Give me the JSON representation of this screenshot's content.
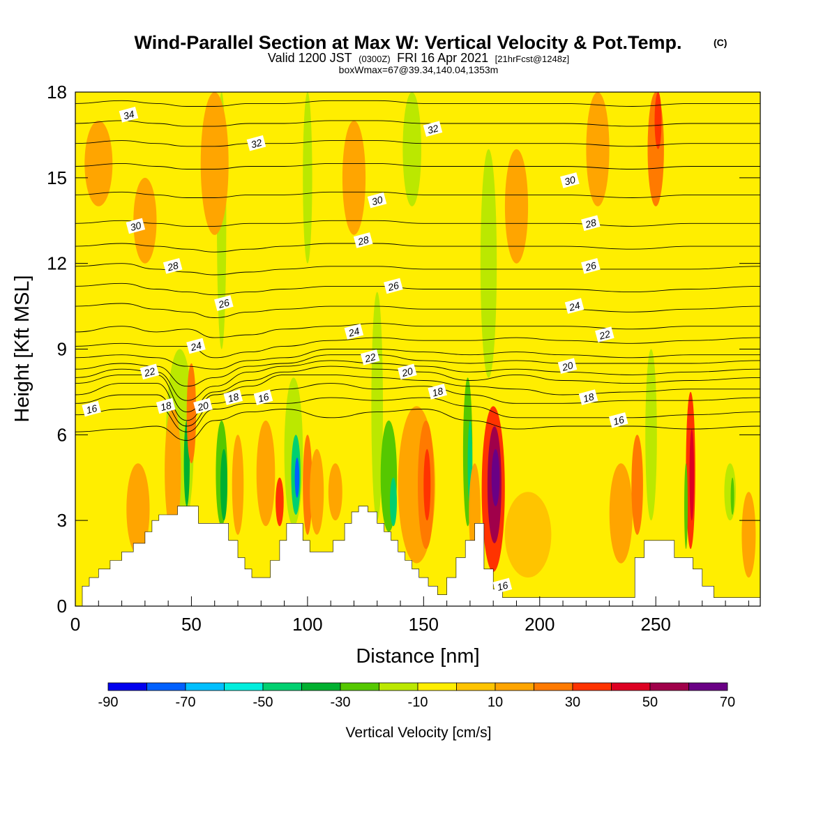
{
  "title": {
    "main": "Wind-Parallel Section at Max W: Vertical Velocity & Pot.Temp.",
    "copyright": "(C)",
    "valid_a": "Valid 1200 JST",
    "valid_b": "(0300Z)",
    "valid_c": "FRI 16 Apr 2021",
    "valid_d": "[21hrFcst@1248z]",
    "info": "boxWmax=67@39.34,140.04,1353m"
  },
  "colors": {
    "background": "#ffffff",
    "contour": "#000000",
    "terrain": "#ffffff"
  },
  "chart_data": {
    "type": "heatmap",
    "title": "Wind-Parallel Section at Max W: Vertical Velocity & Pot.Temp.",
    "xlabel": "Distance [nm]",
    "ylabel": "Height [Kft MSL]",
    "xlim": [
      0,
      295
    ],
    "ylim": [
      0,
      18
    ],
    "x_ticks": [
      0,
      50,
      100,
      150,
      200,
      250
    ],
    "y_ticks": [
      0,
      3,
      6,
      9,
      12,
      15,
      18
    ],
    "colorbar": {
      "label": "Vertical Velocity [cm/s]",
      "tick_labels": [
        "-90",
        "-70",
        "-50",
        "-30",
        "-10",
        "10",
        "30",
        "50",
        "70"
      ],
      "bins": [
        {
          "from": -90,
          "to": -80,
          "color": "#0000ee"
        },
        {
          "from": -80,
          "to": -70,
          "color": "#0060ff"
        },
        {
          "from": -70,
          "to": -60,
          "color": "#00bfff"
        },
        {
          "from": -60,
          "to": -50,
          "color": "#00eedd"
        },
        {
          "from": -50,
          "to": -40,
          "color": "#00d070"
        },
        {
          "from": -40,
          "to": -30,
          "color": "#00b030"
        },
        {
          "from": -30,
          "to": -20,
          "color": "#55c800"
        },
        {
          "from": -20,
          "to": -10,
          "color": "#bbe800"
        },
        {
          "from": -10,
          "to": 0,
          "color": "#ffee00"
        },
        {
          "from": 0,
          "to": 10,
          "color": "#ffc400"
        },
        {
          "from": 10,
          "to": 20,
          "color": "#ffa500"
        },
        {
          "from": 20,
          "to": 30,
          "color": "#ff7a00"
        },
        {
          "from": 30,
          "to": 40,
          "color": "#ff3300"
        },
        {
          "from": 40,
          "to": 50,
          "color": "#dd0022"
        },
        {
          "from": 50,
          "to": 60,
          "color": "#a0004a"
        },
        {
          "from": 60,
          "to": 70,
          "color": "#6a0085"
        }
      ]
    },
    "field_features": [
      {
        "x": 45,
        "y0": 2.5,
        "y1": 9,
        "w": 12,
        "value": -15
      },
      {
        "x": 48,
        "y0": 3.5,
        "y1": 6.5,
        "w": 2.5,
        "value": -35
      },
      {
        "x": 50,
        "y0": 5,
        "y1": 8.5,
        "w": 4,
        "value": 25
      },
      {
        "x": 42,
        "y0": 2.5,
        "y1": 7,
        "w": 7,
        "value": 12
      },
      {
        "x": 63,
        "y0": 2.8,
        "y1": 6.5,
        "w": 5,
        "value": -30
      },
      {
        "x": 64,
        "y0": 3,
        "y1": 5.5,
        "w": 3,
        "value": -40
      },
      {
        "x": 70,
        "y0": 2.5,
        "y1": 6,
        "w": 5,
        "value": 15
      },
      {
        "x": 27,
        "y0": 1.8,
        "y1": 5,
        "w": 10,
        "value": 12
      },
      {
        "x": 82,
        "y0": 2.8,
        "y1": 6.5,
        "w": 8,
        "value": 15
      },
      {
        "x": 88,
        "y0": 2.8,
        "y1": 4.5,
        "w": 3.5,
        "value": 35
      },
      {
        "x": 94,
        "y0": 2.8,
        "y1": 8,
        "w": 8,
        "value": -20
      },
      {
        "x": 95,
        "y0": 3.2,
        "y1": 6,
        "w": 4,
        "value": -45
      },
      {
        "x": 95.5,
        "y0": 3.8,
        "y1": 5.2,
        "w": 2,
        "value": -75
      },
      {
        "x": 100,
        "y0": 2.5,
        "y1": 6,
        "w": 4,
        "value": 25
      },
      {
        "x": 104,
        "y0": 2.5,
        "y1": 5.5,
        "w": 6,
        "value": 12
      },
      {
        "x": 112,
        "y0": 3,
        "y1": 5,
        "w": 6,
        "value": 15
      },
      {
        "x": 130,
        "y0": 3,
        "y1": 11,
        "w": 5,
        "value": -15
      },
      {
        "x": 135,
        "y0": 2.6,
        "y1": 6.5,
        "w": 7,
        "value": -30
      },
      {
        "x": 137,
        "y0": 2.8,
        "y1": 4.5,
        "w": 3,
        "value": -50
      },
      {
        "x": 147,
        "y0": 1.5,
        "y1": 7,
        "w": 16,
        "value": 12
      },
      {
        "x": 151,
        "y0": 2,
        "y1": 6.5,
        "w": 7,
        "value": 25
      },
      {
        "x": 151.5,
        "y0": 3,
        "y1": 5.5,
        "w": 3,
        "value": 35
      },
      {
        "x": 169,
        "y0": 2.8,
        "y1": 8,
        "w": 4,
        "value": -30
      },
      {
        "x": 170,
        "y0": 3.5,
        "y1": 6.5,
        "w": 2,
        "value": -42
      },
      {
        "x": 180,
        "y0": 1.2,
        "y1": 7,
        "w": 10,
        "value": 35
      },
      {
        "x": 180.5,
        "y0": 2.2,
        "y1": 6.3,
        "w": 6,
        "value": 50
      },
      {
        "x": 181,
        "y0": 3.5,
        "y1": 5.5,
        "w": 3.5,
        "value": 65
      },
      {
        "x": 178,
        "y0": 8,
        "y1": 16,
        "w": 7,
        "value": -15
      },
      {
        "x": 172,
        "y0": 1.5,
        "y1": 5,
        "w": 5,
        "value": 15
      },
      {
        "x": 195,
        "y0": 1,
        "y1": 4,
        "w": 20,
        "value": 8
      },
      {
        "x": 235,
        "y0": 1.5,
        "y1": 5,
        "w": 10,
        "value": 12
      },
      {
        "x": 242,
        "y0": 2.5,
        "y1": 6,
        "w": 5,
        "value": 20
      },
      {
        "x": 248,
        "y0": 3,
        "y1": 9,
        "w": 5,
        "value": -15
      },
      {
        "x": 250,
        "y0": 14,
        "y1": 18,
        "w": 7,
        "value": 25
      },
      {
        "x": 251,
        "y0": 16,
        "y1": 18,
        "w": 3,
        "value": 35
      },
      {
        "x": 265,
        "y0": 2,
        "y1": 7.5,
        "w": 4,
        "value": 30
      },
      {
        "x": 265.5,
        "y0": 3,
        "y1": 6.2,
        "w": 2,
        "value": 45
      },
      {
        "x": 263,
        "y0": 2,
        "y1": 5,
        "w": 1.5,
        "value": -30
      },
      {
        "x": 282,
        "y0": 3,
        "y1": 5,
        "w": 5,
        "value": -15
      },
      {
        "x": 283,
        "y0": 3.2,
        "y1": 4.5,
        "w": 1.5,
        "value": -30
      },
      {
        "x": 290,
        "y0": 1,
        "y1": 4,
        "w": 6,
        "value": 12
      },
      {
        "x": 63,
        "y0": 9,
        "y1": 18,
        "w": 4,
        "value": -15
      },
      {
        "x": 100,
        "y0": 12,
        "y1": 18,
        "w": 4,
        "value": -15
      },
      {
        "x": 145,
        "y0": 14,
        "y1": 18,
        "w": 8,
        "value": -12
      },
      {
        "x": 60,
        "y0": 13,
        "y1": 18,
        "w": 12,
        "value": 12
      },
      {
        "x": 120,
        "y0": 13,
        "y1": 17,
        "w": 10,
        "value": 12
      },
      {
        "x": 190,
        "y0": 12,
        "y1": 16,
        "w": 10,
        "value": 12
      },
      {
        "x": 225,
        "y0": 14,
        "y1": 18,
        "w": 10,
        "value": 12
      },
      {
        "x": 30,
        "y0": 12,
        "y1": 15,
        "w": 10,
        "value": 12
      },
      {
        "x": 10,
        "y0": 14,
        "y1": 17,
        "w": 12,
        "value": 12
      }
    ],
    "terrain": {
      "x": [
        0,
        3,
        6,
        10,
        15,
        20,
        25,
        30,
        33,
        36,
        40,
        44,
        48,
        53,
        58,
        63,
        66,
        70,
        73,
        76,
        80,
        84,
        88,
        91,
        95,
        98,
        101,
        106,
        111,
        116,
        119,
        122,
        126,
        130,
        133,
        136,
        139,
        142,
        145,
        148,
        152,
        156,
        160,
        164,
        168,
        172,
        176,
        180,
        184,
        190,
        200,
        210,
        220,
        230,
        237,
        241,
        245,
        250,
        254,
        258,
        262,
        266,
        270,
        275,
        280,
        285,
        290,
        295
      ],
      "y": [
        0,
        0.7,
        1,
        1.3,
        1.6,
        1.9,
        2.2,
        2.6,
        3,
        3.2,
        3.2,
        3.5,
        3.5,
        2.9,
        2.9,
        2.9,
        2.3,
        1.7,
        1.3,
        1,
        1,
        1.6,
        2.3,
        2.9,
        2.9,
        2.3,
        1.9,
        1.9,
        2.3,
        2.9,
        3.3,
        3.5,
        3.3,
        2.9,
        2.6,
        2.3,
        1.9,
        1.6,
        1.3,
        1,
        0.7,
        0.4,
        1,
        1.7,
        2.3,
        2.9,
        1.3,
        0.6,
        0.3,
        0.3,
        0.3,
        0.3,
        0.3,
        0.3,
        0.3,
        1.7,
        2.3,
        2.3,
        2.3,
        1.7,
        1.7,
        1.3,
        0.7,
        0.3,
        0.3,
        0.3,
        0.3,
        0.3
      ]
    },
    "contour_values": [
      16,
      17,
      18,
      19,
      20,
      21,
      22,
      23,
      24,
      25,
      26,
      27,
      28,
      29,
      30,
      31,
      32,
      33,
      34,
      35
    ],
    "contour_levels": [
      {
        "value": 16,
        "y": [
          6.1,
          6.2,
          6.3,
          5.8,
          6.5,
          6.8,
          6.9,
          6.6,
          6.8,
          6.9,
          6.5,
          6.2,
          6.3,
          6.3,
          6.2,
          6.3
        ]
      },
      {
        "value": 17,
        "y": [
          6.7,
          6.9,
          7,
          6.1,
          6.9,
          7.1,
          7.1,
          7.3,
          7.2,
          7.3,
          7,
          6.6,
          6.6,
          6.6,
          6.7,
          6.8
        ]
      },
      {
        "value": 18,
        "y": [
          7.1,
          7.4,
          7.4,
          6.3,
          7.1,
          7.4,
          7.6,
          7.8,
          7.6,
          7.7,
          7.4,
          7.1,
          7.1,
          7.2,
          7.2,
          7.3
        ]
      },
      {
        "value": 19,
        "y": [
          7.4,
          7.8,
          7.8,
          6.5,
          7.4,
          7.7,
          8.1,
          8.1,
          8,
          7.9,
          7.7,
          7.6,
          7.4,
          7.5,
          7.6,
          7.6
        ]
      },
      {
        "value": 20,
        "y": [
          7.8,
          8.1,
          8.1,
          6.8,
          7.5,
          7.9,
          8.2,
          8.4,
          8.3,
          8.2,
          7.9,
          8.1,
          7.9,
          7.8,
          7.9,
          8
        ]
      },
      {
        "value": 21,
        "y": [
          8,
          8.3,
          8.2,
          7.2,
          7.7,
          8.2,
          8.4,
          8.6,
          8.5,
          8.4,
          8.2,
          8.3,
          8.2,
          8.1,
          8.2,
          8.3
        ]
      },
      {
        "value": 22,
        "y": [
          8.3,
          8.5,
          8.4,
          7.7,
          8,
          8.4,
          8.5,
          8.8,
          8.8,
          8.6,
          8.5,
          8.6,
          8.5,
          8.5,
          8.5,
          8.6
        ]
      },
      {
        "value": 23,
        "y": [
          8.7,
          8.8,
          8.7,
          8.4,
          8.3,
          8.6,
          8.7,
          9,
          9,
          8.9,
          8.8,
          8.9,
          8.8,
          8.7,
          8.8,
          8.8
        ]
      },
      {
        "value": 24,
        "y": [
          9.1,
          9.2,
          9.1,
          9.1,
          8.7,
          8.9,
          9.1,
          9.3,
          9.4,
          9.3,
          9.3,
          9.4,
          9.3,
          9.2,
          9.3,
          9.4
        ]
      },
      {
        "value": 25,
        "y": [
          9.6,
          9.8,
          9.6,
          9.7,
          9.4,
          9.5,
          9.7,
          9.8,
          9.9,
          9.8,
          9.8,
          9.8,
          9.8,
          9.7,
          9.8,
          9.8
        ]
      },
      {
        "value": 26,
        "y": [
          10.5,
          10.6,
          10.4,
          10.3,
          10.1,
          10.3,
          10.4,
          10.5,
          10.5,
          10.4,
          10.4,
          10.4,
          10.4,
          10.3,
          10.4,
          10.5
        ]
      },
      {
        "value": 27,
        "y": [
          11.2,
          11.3,
          11.1,
          11,
          10.9,
          11,
          11.1,
          11.2,
          11.2,
          11.1,
          11.1,
          11.1,
          11.1,
          11,
          11.1,
          11.2
        ]
      },
      {
        "value": 28,
        "y": [
          11.9,
          12,
          11.8,
          11.7,
          11.6,
          11.7,
          11.8,
          11.9,
          11.9,
          11.8,
          11.8,
          11.8,
          11.8,
          11.8,
          11.8,
          11.9
        ]
      },
      {
        "value": 29,
        "y": [
          12.6,
          12.7,
          12.6,
          12.5,
          12.4,
          12.5,
          12.6,
          12.7,
          12.7,
          12.6,
          12.6,
          12.6,
          12.6,
          12.5,
          12.6,
          12.6
        ]
      },
      {
        "value": 30,
        "y": [
          13.4,
          13.5,
          13.4,
          13.3,
          13.3,
          13.4,
          13.4,
          13.5,
          13.5,
          13.4,
          13.4,
          13.4,
          13.4,
          13.3,
          13.4,
          13.4
        ]
      },
      {
        "value": 31,
        "y": [
          14.4,
          14.5,
          14.4,
          14.3,
          14.3,
          14.4,
          14.4,
          14.5,
          14.5,
          14.4,
          14.4,
          14.4,
          14.4,
          14.3,
          14.4,
          14.4
        ]
      },
      {
        "value": 32,
        "y": [
          15.4,
          15.5,
          15.4,
          15.3,
          15.3,
          15.4,
          15.4,
          15.5,
          15.5,
          15.4,
          15.4,
          15.4,
          15.4,
          15.3,
          15.4,
          15.4
        ]
      },
      {
        "value": 33,
        "y": [
          16.2,
          16.3,
          16.2,
          16.1,
          16.1,
          16.2,
          16.2,
          16.3,
          16.3,
          16.2,
          16.2,
          16.2,
          16.2,
          16.1,
          16.2,
          16.2
        ]
      },
      {
        "value": 34,
        "y": [
          16.9,
          17,
          16.9,
          16.8,
          16.8,
          16.9,
          16.9,
          17,
          17,
          16.9,
          16.9,
          16.9,
          16.9,
          16.8,
          16.9,
          16.9
        ]
      },
      {
        "value": 35,
        "y": [
          17.6,
          17.7,
          17.6,
          17.5,
          17.5,
          17.6,
          17.6,
          17.7,
          17.7,
          17.6,
          17.6,
          17.6,
          17.6,
          17.5,
          17.6,
          17.6
        ]
      }
    ],
    "contour_x": [
      0,
      20,
      35,
      48,
      60,
      75,
      90,
      110,
      130,
      150,
      170,
      190,
      210,
      240,
      265,
      295
    ],
    "contour_labels": [
      {
        "text": "34",
        "x": 23,
        "y": 17.2
      },
      {
        "text": "32",
        "x": 78,
        "y": 16.2
      },
      {
        "text": "32",
        "x": 154,
        "y": 16.7
      },
      {
        "text": "30",
        "x": 130,
        "y": 14.2
      },
      {
        "text": "30",
        "x": 213,
        "y": 14.9
      },
      {
        "text": "30",
        "x": 26,
        "y": 13.3
      },
      {
        "text": "28",
        "x": 124,
        "y": 12.8
      },
      {
        "text": "28",
        "x": 222,
        "y": 13.4
      },
      {
        "text": "28",
        "x": 42,
        "y": 11.9
      },
      {
        "text": "26",
        "x": 137,
        "y": 11.2
      },
      {
        "text": "26",
        "x": 222,
        "y": 11.9
      },
      {
        "text": "26",
        "x": 64,
        "y": 10.6
      },
      {
        "text": "24",
        "x": 120,
        "y": 9.6
      },
      {
        "text": "24",
        "x": 215,
        "y": 10.5
      },
      {
        "text": "24",
        "x": 52,
        "y": 9.1
      },
      {
        "text": "22",
        "x": 127,
        "y": 8.7
      },
      {
        "text": "22",
        "x": 228,
        "y": 9.5
      },
      {
        "text": "22",
        "x": 32,
        "y": 8.2
      },
      {
        "text": "20",
        "x": 143,
        "y": 8.2
      },
      {
        "text": "20",
        "x": 212,
        "y": 8.4
      },
      {
        "text": "20",
        "x": 55,
        "y": 7
      },
      {
        "text": "18",
        "x": 156,
        "y": 7.5
      },
      {
        "text": "18",
        "x": 221,
        "y": 7.3
      },
      {
        "text": "18",
        "x": 39,
        "y": 7
      },
      {
        "text": "18",
        "x": 68,
        "y": 7.3
      },
      {
        "text": "16",
        "x": 81,
        "y": 7.3
      },
      {
        "text": "16",
        "x": 7,
        "y": 6.9
      },
      {
        "text": "16",
        "x": 234,
        "y": 6.5
      },
      {
        "text": "16",
        "x": 184,
        "y": 0.7
      }
    ]
  }
}
